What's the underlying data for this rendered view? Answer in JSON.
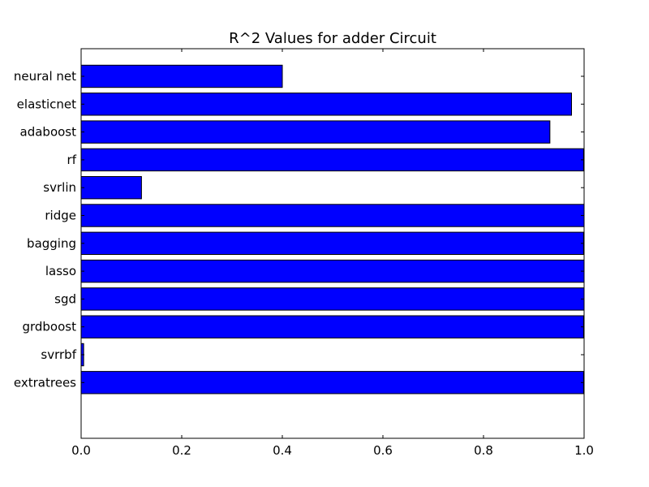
{
  "chart_data": {
    "type": "bar",
    "orientation": "horizontal",
    "title": "R^2 Values for adder Circuit",
    "xlabel": "",
    "ylabel": "",
    "xlim": [
      0.0,
      1.0
    ],
    "xticks": [
      "0.0",
      "0.2",
      "0.4",
      "0.6",
      "0.8",
      "1.0"
    ],
    "categories": [
      "neural net",
      "elasticnet",
      "adaboost",
      "rf",
      "svrlin",
      "ridge",
      "bagging",
      "lasso",
      "sgd",
      "grdboost",
      "svrrbf",
      "extratrees"
    ],
    "values": [
      0.4,
      0.975,
      0.932,
      0.999,
      0.12,
      1.0,
      0.999,
      1.0,
      1.0,
      0.999,
      0.005,
      0.999
    ],
    "bar_color": "#0000ff",
    "grid": false,
    "legend": "none"
  }
}
